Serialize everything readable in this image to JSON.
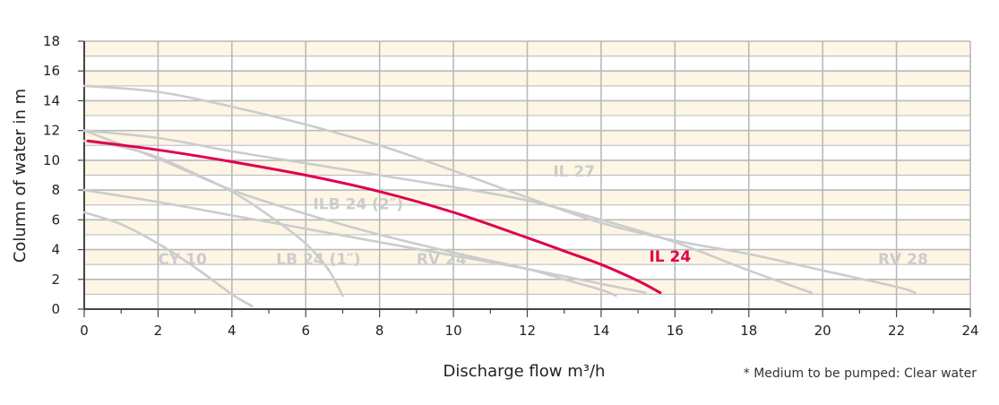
{
  "chart_data": {
    "type": "line",
    "xlabel": "Discharge flow m³/h",
    "ylabel": "Column of water in m",
    "footnote": "* Medium to be pumped: Clear water",
    "xlim": [
      0,
      24
    ],
    "ylim": [
      0,
      18
    ],
    "x_ticks": [
      0,
      2,
      4,
      6,
      8,
      10,
      12,
      14,
      16,
      18,
      20,
      22,
      24
    ],
    "y_ticks": [
      0,
      2,
      4,
      6,
      8,
      10,
      12,
      14,
      16,
      18
    ],
    "grid": true,
    "colors": {
      "highlight": "#e0004d",
      "other": "#cccccc",
      "band": "#fdf6e5",
      "grid": "#b9b9b9"
    },
    "series": [
      {
        "name": "CY 10",
        "highlight": false,
        "label_at": [
          2,
          3
        ],
        "x": [
          0,
          1,
          2,
          3,
          4,
          4.55
        ],
        "y": [
          6.5,
          5.7,
          4.4,
          2.8,
          1.0,
          0.2
        ]
      },
      {
        "name": "LB 24 (1″)",
        "highlight": false,
        "label_at": [
          5.2,
          3
        ],
        "x": [
          0,
          1,
          2,
          3,
          4,
          5,
          6,
          6.6,
          7.0
        ],
        "y": [
          11.3,
          10.9,
          10.2,
          9.1,
          7.9,
          6.3,
          4.4,
          2.7,
          0.9
        ]
      },
      {
        "name": "ILB 24 (2″)",
        "highlight": false,
        "label_at": [
          6.2,
          6.7
        ],
        "x": [
          0,
          2,
          4,
          6,
          8,
          10,
          12,
          13,
          14,
          14.4
        ],
        "y": [
          12,
          10.1,
          8.0,
          6.4,
          5.0,
          3.8,
          2.7,
          2.0,
          1.3,
          0.9
        ]
      },
      {
        "name": "RV 24",
        "highlight": false,
        "label_at": [
          9,
          3
        ],
        "x": [
          0,
          2,
          4,
          6,
          8,
          10,
          12,
          14,
          15.2
        ],
        "y": [
          8.0,
          7.2,
          6.3,
          5.4,
          4.5,
          3.6,
          2.7,
          1.7,
          1.1
        ]
      },
      {
        "name": "IL 27",
        "highlight": false,
        "label_at": [
          12.7,
          8.9
        ],
        "x": [
          0,
          2,
          4,
          6,
          8,
          10,
          12,
          14,
          16,
          18,
          19.7
        ],
        "y": [
          12,
          11.5,
          10.6,
          9.8,
          9.0,
          8.2,
          7.3,
          6.0,
          4.5,
          2.6,
          1.1
        ]
      },
      {
        "name": "RV 28",
        "highlight": false,
        "label_at": [
          21.5,
          3
        ],
        "x": [
          0,
          2,
          4,
          6,
          8,
          10,
          12,
          14,
          16,
          18,
          20,
          22,
          22.5
        ],
        "y": [
          15.0,
          14.6,
          13.6,
          12.4,
          11.0,
          9.3,
          7.5,
          5.8,
          4.6,
          3.7,
          2.6,
          1.5,
          1.1
        ]
      },
      {
        "name": "IL 24",
        "highlight": true,
        "label_at": [
          15.3,
          3.2
        ],
        "x": [
          0.1,
          2,
          4,
          6,
          8,
          10,
          12,
          13,
          14,
          15,
          15.6
        ],
        "y": [
          11.3,
          10.7,
          9.9,
          9.0,
          7.9,
          6.5,
          4.8,
          3.9,
          3.0,
          1.9,
          1.1
        ]
      }
    ]
  }
}
